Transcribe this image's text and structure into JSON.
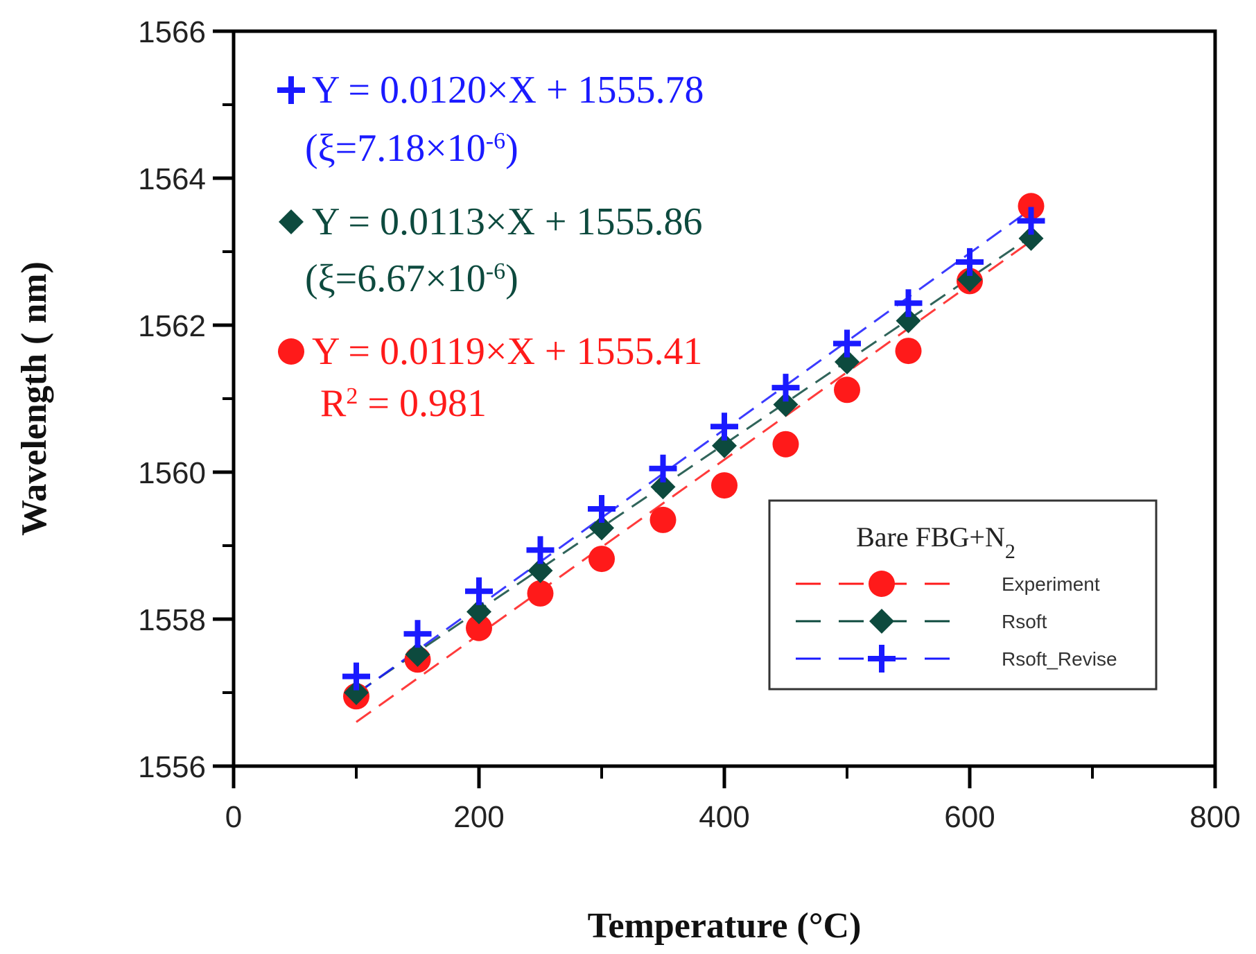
{
  "chart_data": {
    "type": "scatter",
    "title": "",
    "xlabel": "Temperature (°C)",
    "ylabel": "Wavelength ( nm)",
    "xlim": [
      0,
      800
    ],
    "ylim": [
      1556,
      1566
    ],
    "xticks": [
      0,
      200,
      400,
      600,
      800
    ],
    "yticks": [
      1556,
      1558,
      1560,
      1562,
      1564,
      1566
    ],
    "grid": false,
    "legend_position": "lower-right",
    "legend_title": "Bare FBG+N",
    "legend_title_sub": "2",
    "x": [
      100,
      150,
      200,
      250,
      300,
      350,
      400,
      450,
      500,
      550,
      600,
      650
    ],
    "series": [
      {
        "name": "Experiment",
        "color": "#ff1a1a",
        "marker": "circle",
        "values": [
          1556.95,
          1557.45,
          1557.88,
          1558.35,
          1558.82,
          1559.35,
          1559.82,
          1560.38,
          1561.12,
          1561.65,
          1562.6,
          1563.62
        ],
        "fit": {
          "slope": 0.0119,
          "intercept": 1555.41
        }
      },
      {
        "name": "Rsoft",
        "color": "#0d4a3e",
        "marker": "diamond",
        "values": [
          1557.0,
          1557.52,
          1558.1,
          1558.66,
          1559.24,
          1559.8,
          1560.36,
          1560.92,
          1561.5,
          1562.06,
          1562.62,
          1563.18
        ],
        "fit": {
          "slope": 0.0113,
          "intercept": 1555.86
        }
      },
      {
        "name": "Rsoft_Revise",
        "color": "#1a1aff",
        "marker": "plus",
        "values": [
          1557.22,
          1557.8,
          1558.38,
          1558.94,
          1559.5,
          1560.05,
          1560.62,
          1561.15,
          1561.75,
          1562.3,
          1562.86,
          1563.42
        ],
        "fit": {
          "slope": 0.012,
          "intercept": 1555.78
        }
      }
    ],
    "annotations": [
      {
        "series": "Rsoft_Revise",
        "color": "#1a1aff",
        "line1": "Y = 0.0120×X + 1555.78",
        "line2": "(ξ=7.18×10",
        "line2_sup": "-6",
        "line2_end": ")"
      },
      {
        "series": "Rsoft",
        "color": "#0d4a3e",
        "line1": "Y = 0.0113×X + 1555.86",
        "line2": "(ξ=6.67×10",
        "line2_sup": "-6",
        "line2_end": ")"
      },
      {
        "series": "Experiment",
        "color": "#ff1a1a",
        "line1": "Y = 0.0119×X + 1555.41",
        "line2": "R",
        "line2_sup": "2",
        "line2_end": " = 0.981"
      }
    ]
  }
}
